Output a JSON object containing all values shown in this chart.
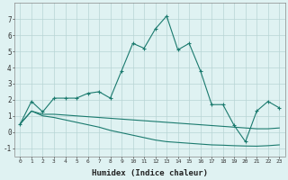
{
  "xlabel": "Humidex (Indice chaleur)",
  "x": [
    0,
    1,
    2,
    3,
    4,
    5,
    6,
    7,
    8,
    9,
    10,
    11,
    12,
    13,
    14,
    15,
    16,
    17,
    18,
    19,
    20,
    21,
    22,
    23
  ],
  "line1": [
    0.5,
    1.9,
    1.25,
    2.1,
    2.1,
    2.1,
    2.4,
    2.5,
    2.1,
    3.8,
    5.5,
    5.2,
    6.4,
    7.2,
    5.1,
    5.5,
    3.8,
    1.7,
    1.7,
    0.4,
    -0.6,
    1.3,
    1.9,
    1.5
  ],
  "line2": [
    0.5,
    1.3,
    1.1,
    1.1,
    1.05,
    1.0,
    0.95,
    0.9,
    0.85,
    0.8,
    0.75,
    0.7,
    0.65,
    0.6,
    0.55,
    0.5,
    0.45,
    0.4,
    0.35,
    0.3,
    0.25,
    0.2,
    0.2,
    0.25
  ],
  "line3": [
    0.5,
    1.3,
    1.0,
    0.9,
    0.75,
    0.6,
    0.45,
    0.3,
    0.1,
    -0.05,
    -0.2,
    -0.35,
    -0.5,
    -0.6,
    -0.65,
    -0.7,
    -0.75,
    -0.8,
    -0.82,
    -0.85,
    -0.87,
    -0.88,
    -0.85,
    -0.8
  ],
  "line_color": "#1a7a6e",
  "bg_color": "#dff2f2",
  "grid_color": "#b8d4d4",
  "ylim": [
    -1.5,
    8.0
  ],
  "xlim": [
    -0.5,
    23.5
  ],
  "yticks": [
    -1,
    0,
    1,
    2,
    3,
    4,
    5,
    6,
    7
  ],
  "xticks": [
    0,
    1,
    2,
    3,
    4,
    5,
    6,
    7,
    8,
    9,
    10,
    11,
    12,
    13,
    14,
    15,
    16,
    17,
    18,
    19,
    20,
    21,
    22,
    23
  ]
}
